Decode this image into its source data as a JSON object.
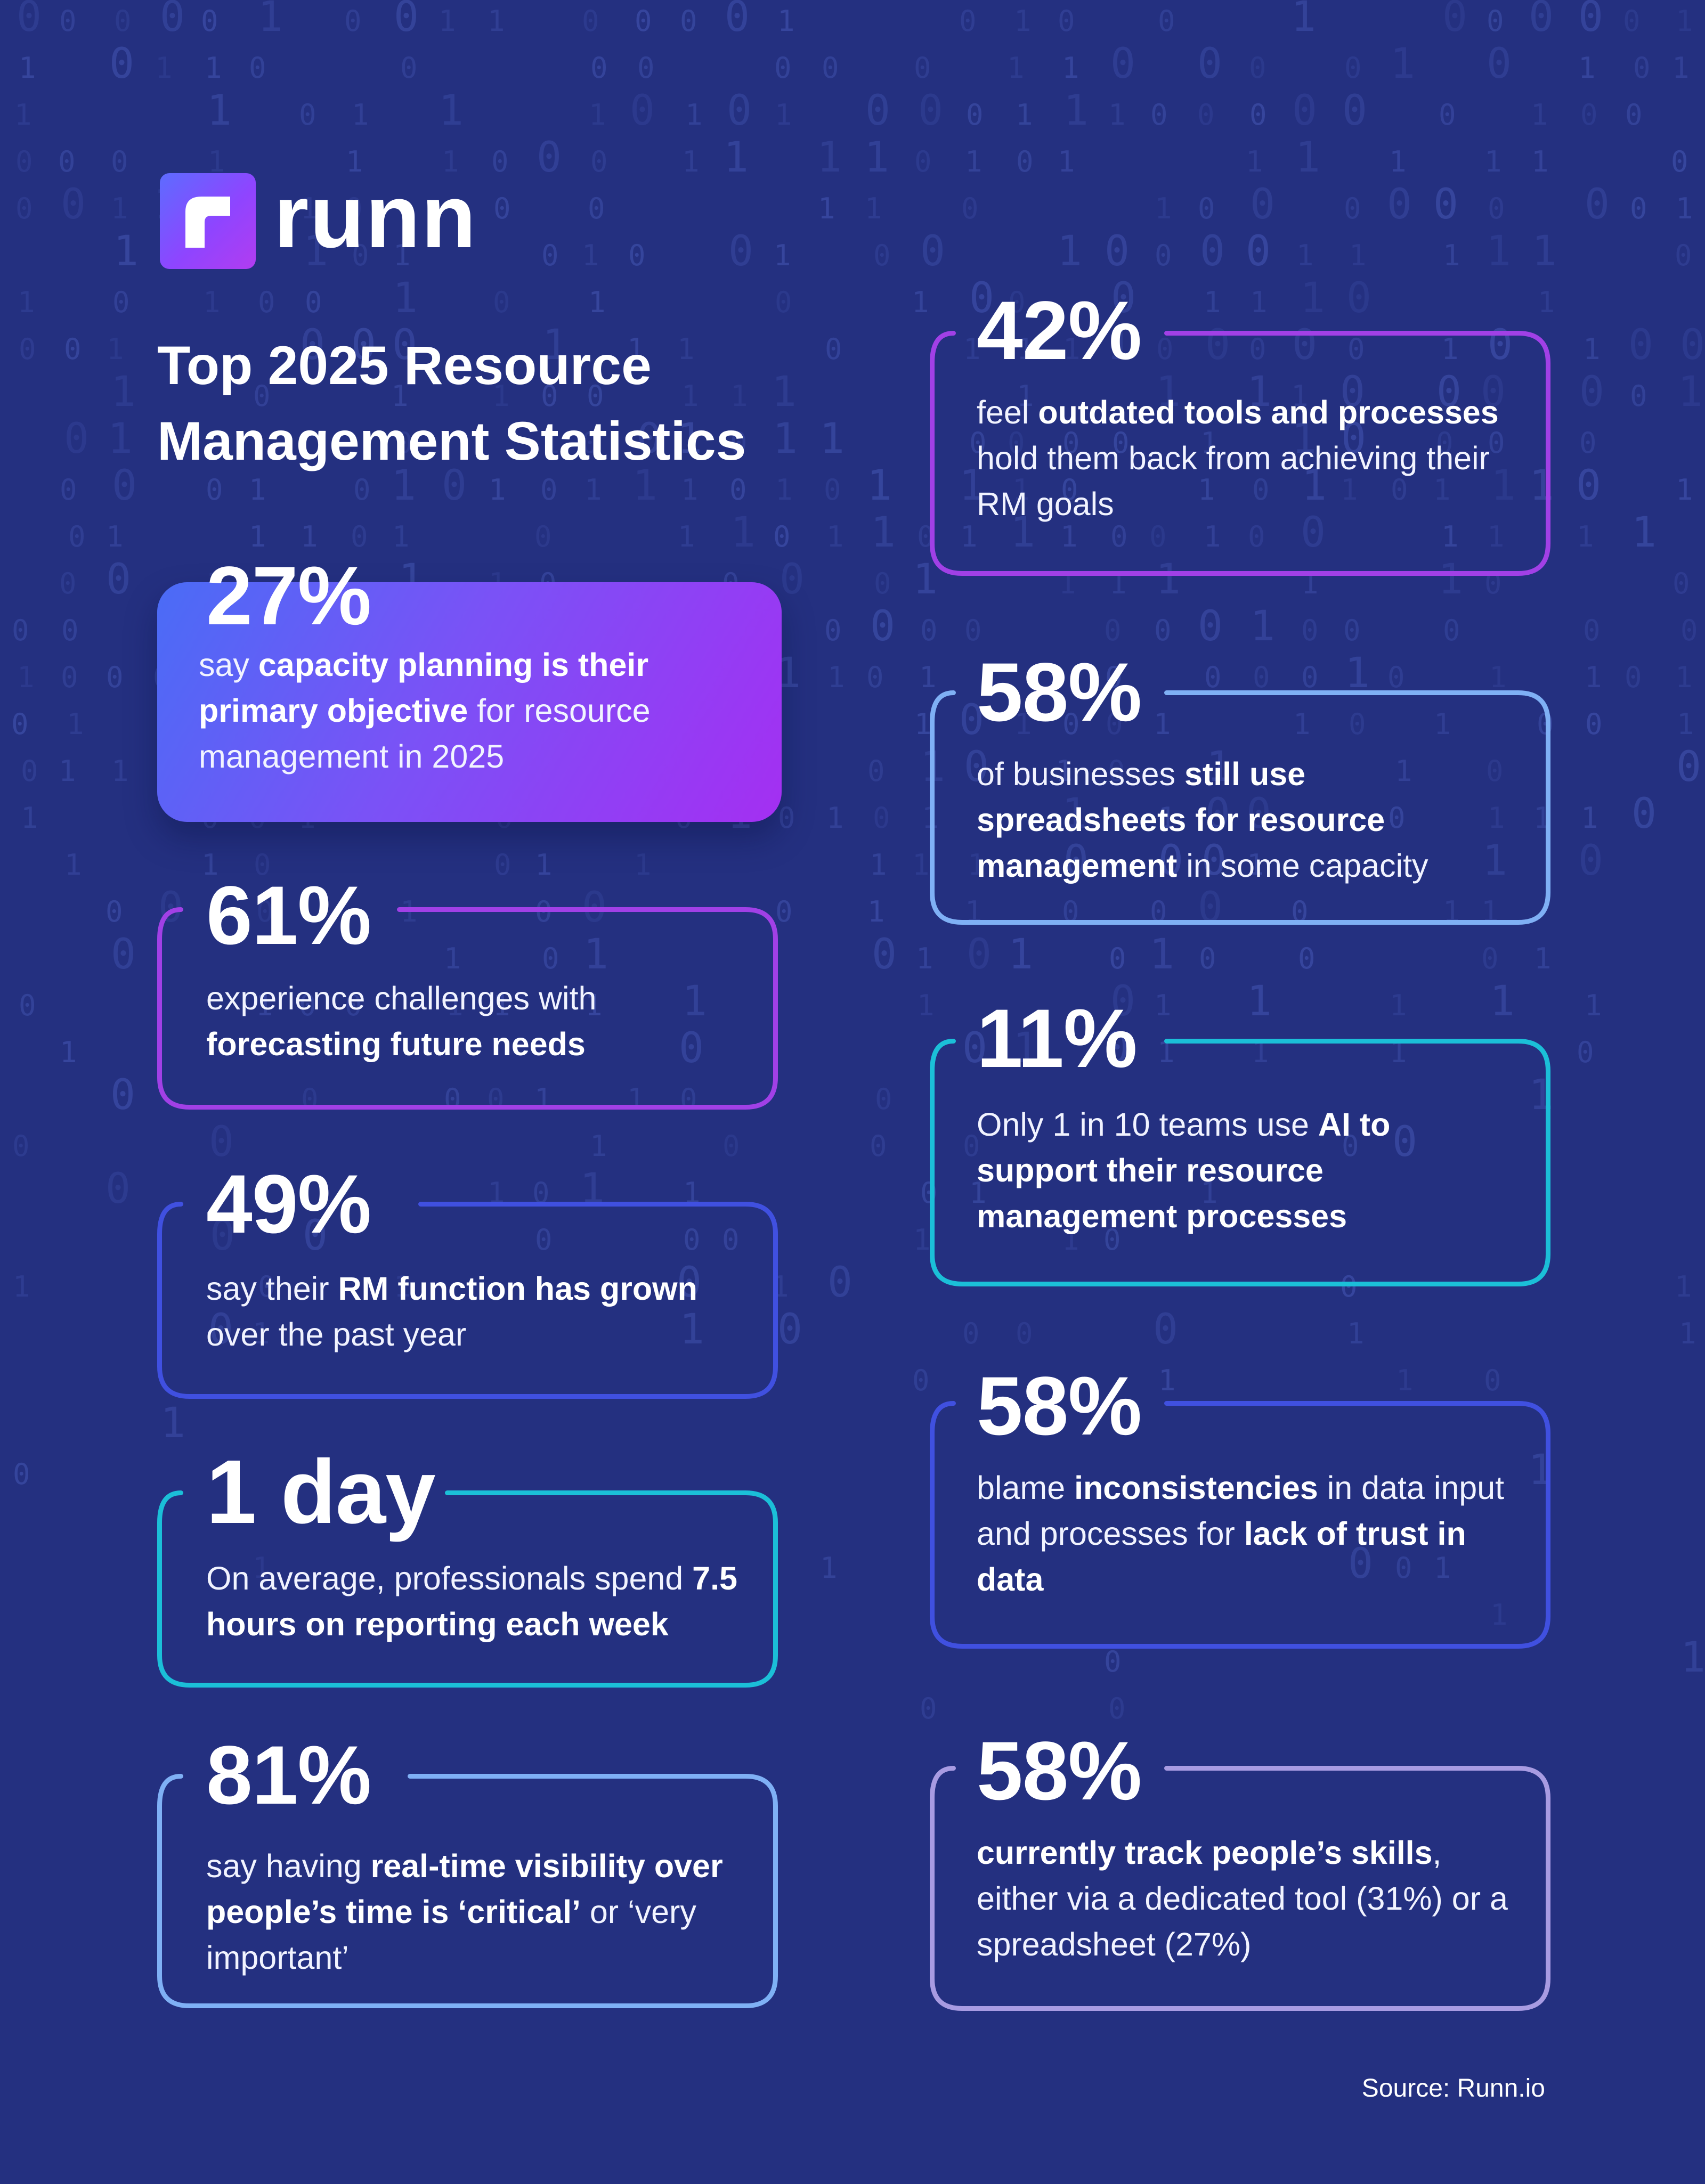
{
  "brand": {
    "name": "runn",
    "colors": {
      "background": "#243080",
      "purple": "#a140e6",
      "light_blue": "#7fb0f5",
      "cyan": "#1bbfd8",
      "blue": "#4050e0",
      "lavender": "#a89be2"
    }
  },
  "title": {
    "line1": "Top 2025 Resource",
    "line2": "Management Statistics"
  },
  "stats": [
    {
      "value": "27%",
      "parts": [
        [
          "say ",
          false
        ],
        [
          "capacity planning is their primary objective",
          true
        ],
        [
          " for resource management in 2025",
          false
        ]
      ]
    },
    {
      "value": "61%",
      "parts": [
        [
          "experience challenges with ",
          false
        ],
        [
          "forecasting future needs",
          true
        ]
      ]
    },
    {
      "value": "49%",
      "parts": [
        [
          "say their ",
          false
        ],
        [
          "RM function has grown",
          true
        ],
        [
          " over the past year",
          false
        ]
      ]
    },
    {
      "value": "1 day",
      "parts": [
        [
          "On average, professionals spend ",
          false
        ],
        [
          "7.5 hours on reporting each week",
          true
        ]
      ]
    },
    {
      "value": "81%",
      "parts": [
        [
          "say having ",
          false
        ],
        [
          "real-time visibility over people’s time is ‘critical’",
          true
        ],
        [
          " or ‘very important’",
          false
        ]
      ]
    },
    {
      "value": "42%",
      "parts": [
        [
          "feel ",
          false
        ],
        [
          "outdated tools and processes",
          true
        ],
        [
          " hold them back from achieving their RM goals",
          false
        ]
      ]
    },
    {
      "value": "58%",
      "parts": [
        [
          "of businesses ",
          false
        ],
        [
          "still use spreadsheets for resource management",
          true
        ],
        [
          " in some capacity",
          false
        ]
      ]
    },
    {
      "value": "11%",
      "parts": [
        [
          "Only 1 in 10 teams use ",
          false
        ],
        [
          "AI to support their resource management processes",
          true
        ]
      ]
    },
    {
      "value": "58%",
      "parts": [
        [
          "blame ",
          false
        ],
        [
          "inconsistencies",
          true
        ],
        [
          " in data input and processes for ",
          false
        ],
        [
          "lack of trust in data",
          true
        ]
      ]
    },
    {
      "value": "58%",
      "parts": [
        [
          "currently track people’s skills",
          true
        ],
        [
          ", either via a dedicated tool (31%) or a spreadsheet (27%)",
          false
        ]
      ]
    }
  ],
  "source": "Source: Runn.io"
}
